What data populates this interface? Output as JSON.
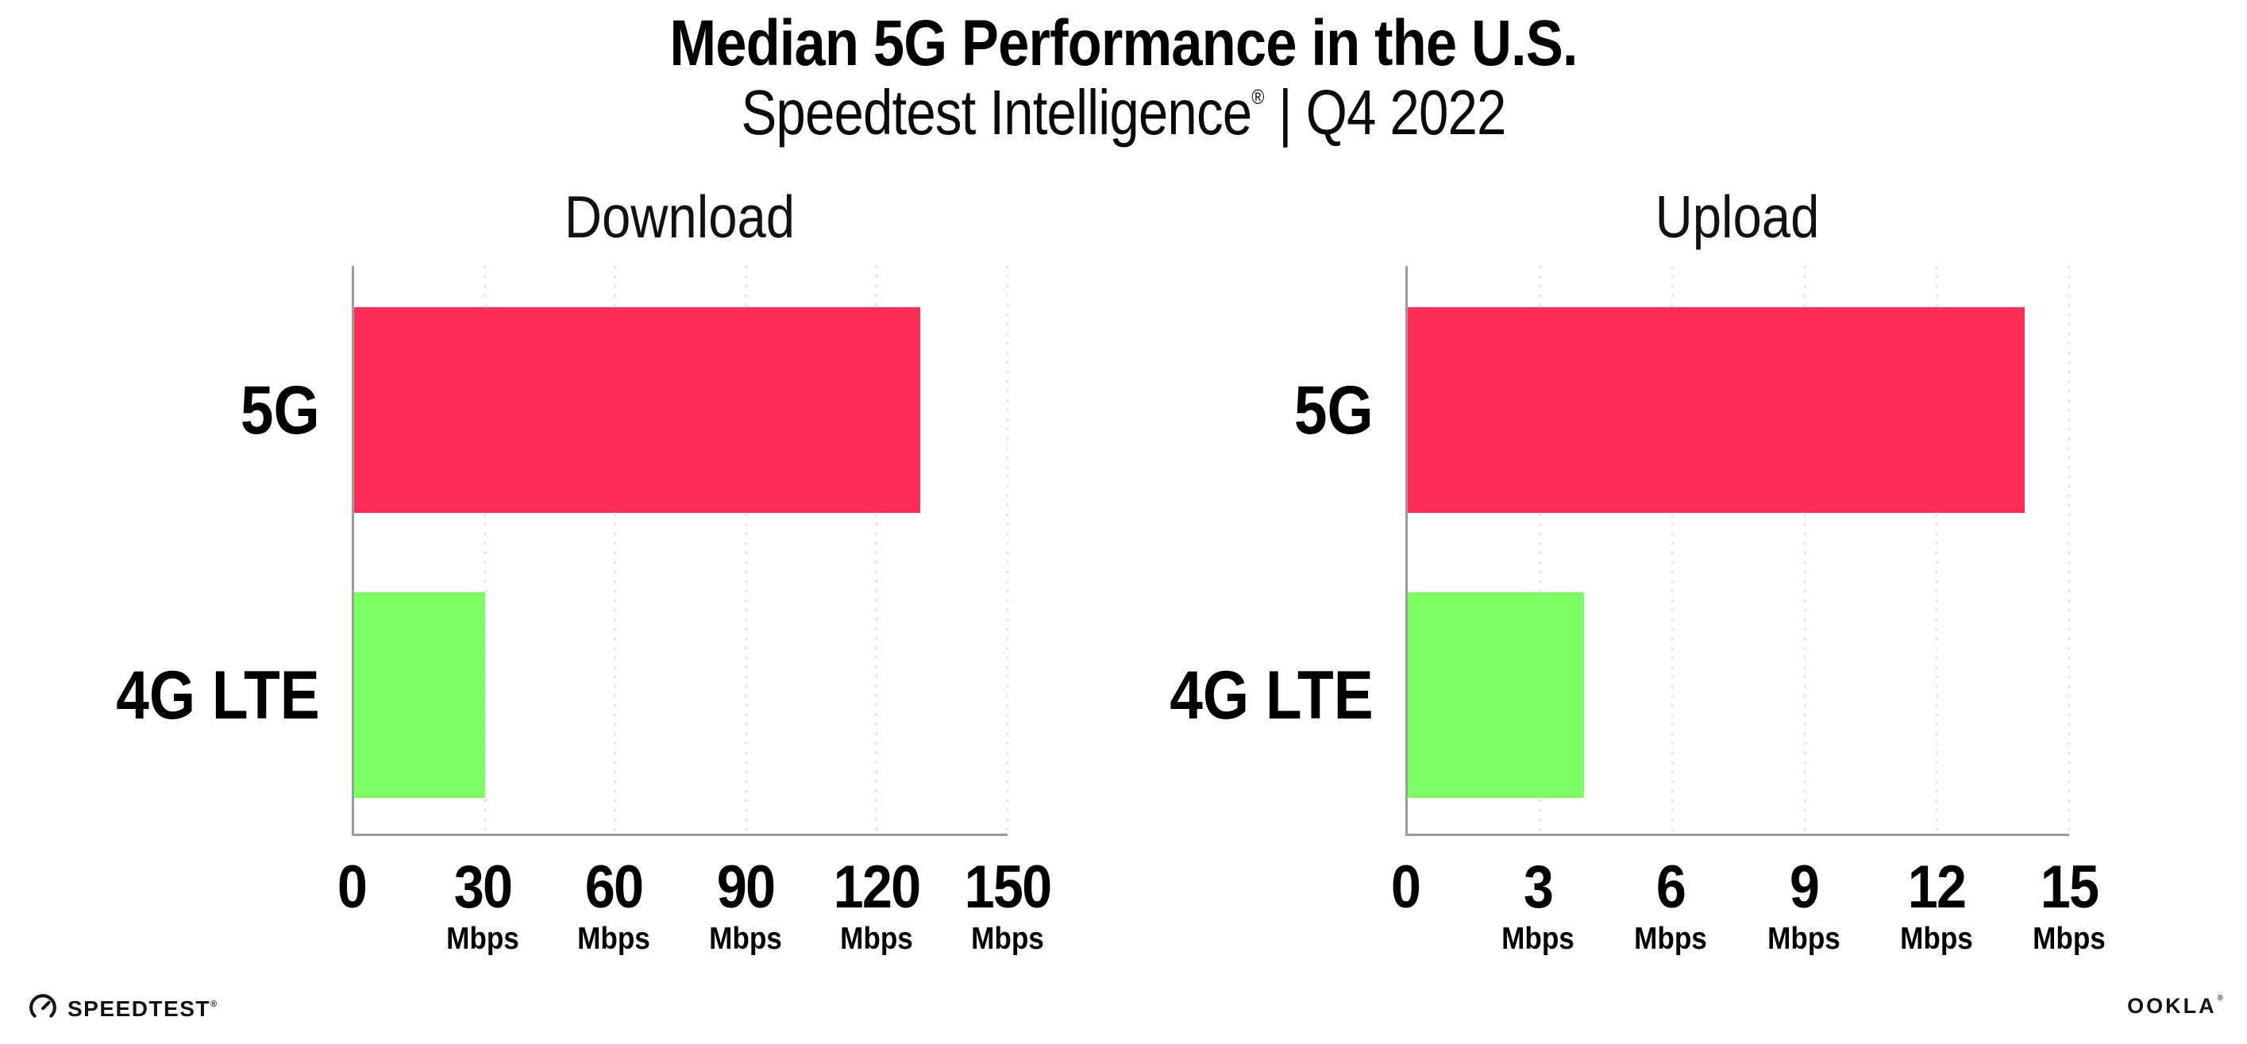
{
  "page": {
    "background": "#FFFFFF"
  },
  "header": {
    "title": "Median 5G Performance in the U.S.",
    "subtitle_brand": "Speedtest Intelligence",
    "subtitle_registered": "®",
    "subtitle_rest": " | Q4 2022"
  },
  "footer": {
    "speedtest_label": "SPEEDTEST",
    "speedtest_mark": "®",
    "speedtest_icon": "gauge-icon",
    "ookla_label": "OOKLA",
    "ookla_mark": "®"
  },
  "colors": {
    "bar_5g": "#FF2E56",
    "bar_4g_lte": "#7DFC64",
    "axis_line": "#9C9C9C",
    "gridline_dots": "#E2E2EC",
    "text": "#000000"
  },
  "chart_data": [
    {
      "type": "bar",
      "orientation": "horizontal",
      "title": "Download",
      "categories": [
        "5G",
        "4G LTE"
      ],
      "values": [
        130,
        30
      ],
      "unit": "Mbps",
      "xlim": [
        0,
        150
      ],
      "x_ticks": [
        0,
        30,
        60,
        90,
        120,
        150
      ],
      "tick_unit_label": "Mbps",
      "series_colors": [
        "#FF2E56",
        "#7DFC64"
      ],
      "grid": "dotted vertical lines at each tick",
      "legend": "none"
    },
    {
      "type": "bar",
      "orientation": "horizontal",
      "title": "Upload",
      "categories": [
        "5G",
        "4G LTE"
      ],
      "values": [
        14,
        4
      ],
      "unit": "Mbps",
      "xlim": [
        0,
        15
      ],
      "x_ticks": [
        0,
        3,
        6,
        9,
        12,
        15
      ],
      "tick_unit_label": "Mbps",
      "series_colors": [
        "#FF2E56",
        "#7DFC64"
      ],
      "grid": "dotted vertical lines at each tick",
      "legend": "none"
    }
  ]
}
